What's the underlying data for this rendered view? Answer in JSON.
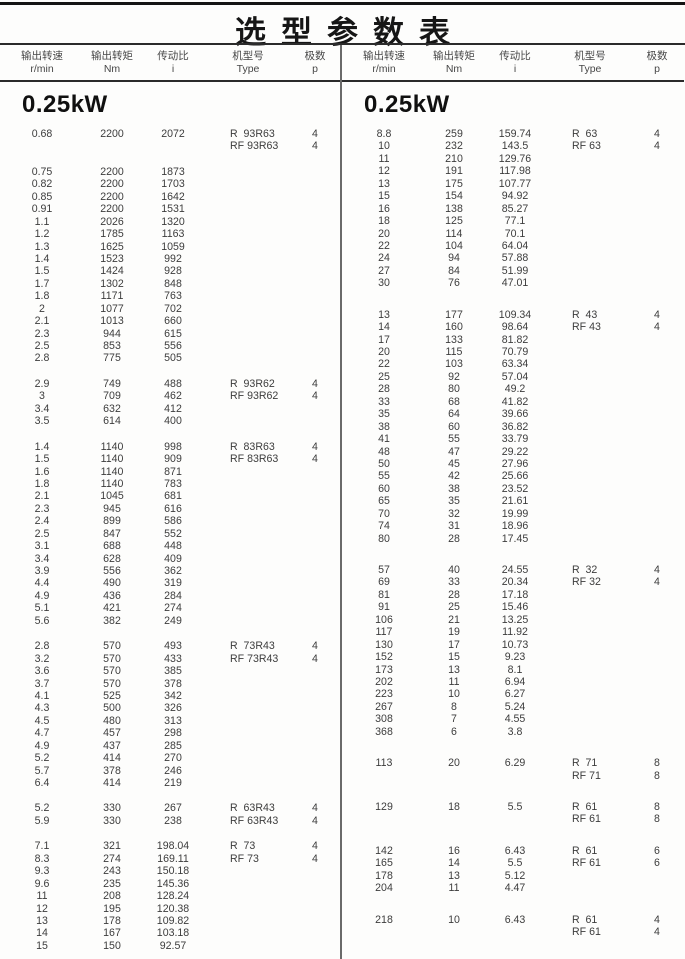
{
  "title": "选型参数表",
  "header": {
    "cols": [
      {
        "label": "输出转速",
        "unit": "r/min"
      },
      {
        "label": "输出转矩",
        "unit": "Nm"
      },
      {
        "label": "传动比",
        "unit": "i"
      },
      {
        "label": "机型号",
        "unit": "Type"
      },
      {
        "label": "极数",
        "unit": "p"
      }
    ]
  },
  "left": {
    "power": "0.25kW",
    "blocks": [
      {
        "rows": [
          [
            "0.68",
            "2200",
            "2072",
            "R  93R63",
            "4"
          ],
          [
            "",
            "",
            "",
            "RF 93R63",
            "4"
          ]
        ]
      },
      {
        "rows": [
          [
            "0.75",
            "2200",
            "1873",
            "",
            ""
          ],
          [
            "0.82",
            "2200",
            "1703",
            "",
            ""
          ],
          [
            "0.85",
            "2200",
            "1642",
            "",
            ""
          ],
          [
            "0.91",
            "2200",
            "1531",
            "",
            ""
          ],
          [
            "1.1",
            "2026",
            "1320",
            "",
            ""
          ],
          [
            "1.2",
            "1785",
            "1163",
            "",
            ""
          ],
          [
            "1.3",
            "1625",
            "1059",
            "",
            ""
          ],
          [
            "1.4",
            "1523",
            "992",
            "",
            ""
          ],
          [
            "1.5",
            "1424",
            "928",
            "",
            ""
          ],
          [
            "1.7",
            "1302",
            "848",
            "",
            ""
          ],
          [
            "1.8",
            "1171",
            "763",
            "",
            ""
          ],
          [
            "2",
            "1077",
            "702",
            "",
            ""
          ],
          [
            "2.1",
            "1013",
            "660",
            "",
            ""
          ],
          [
            "2.3",
            "944",
            "615",
            "",
            ""
          ],
          [
            "2.5",
            "853",
            "556",
            "",
            ""
          ],
          [
            "2.8",
            "775",
            "505",
            "",
            ""
          ]
        ]
      },
      {
        "rows": [
          [
            "2.9",
            "749",
            "488",
            "R  93R62",
            "4"
          ],
          [
            "3",
            "709",
            "462",
            "RF 93R62",
            "4"
          ],
          [
            "3.4",
            "632",
            "412",
            "",
            ""
          ],
          [
            "3.5",
            "614",
            "400",
            "",
            ""
          ]
        ]
      },
      {
        "rows": [
          [
            "1.4",
            "1140",
            "998",
            "R  83R63",
            "4"
          ],
          [
            "1.5",
            "1140",
            "909",
            "RF 83R63",
            "4"
          ],
          [
            "1.6",
            "1140",
            "871",
            "",
            ""
          ],
          [
            "1.8",
            "1140",
            "783",
            "",
            ""
          ],
          [
            "2.1",
            "1045",
            "681",
            "",
            ""
          ],
          [
            "2.3",
            "945",
            "616",
            "",
            ""
          ],
          [
            "2.4",
            "899",
            "586",
            "",
            ""
          ],
          [
            "2.5",
            "847",
            "552",
            "",
            ""
          ],
          [
            "3.1",
            "688",
            "448",
            "",
            ""
          ],
          [
            "3.4",
            "628",
            "409",
            "",
            ""
          ],
          [
            "3.9",
            "556",
            "362",
            "",
            ""
          ],
          [
            "4.4",
            "490",
            "319",
            "",
            ""
          ],
          [
            "4.9",
            "436",
            "284",
            "",
            ""
          ],
          [
            "5.1",
            "421",
            "274",
            "",
            ""
          ],
          [
            "5.6",
            "382",
            "249",
            "",
            ""
          ]
        ]
      },
      {
        "rows": [
          [
            "2.8",
            "570",
            "493",
            "R  73R43",
            "4"
          ],
          [
            "3.2",
            "570",
            "433",
            "RF 73R43",
            "4"
          ],
          [
            "3.6",
            "570",
            "385",
            "",
            ""
          ],
          [
            "3.7",
            "570",
            "378",
            "",
            ""
          ],
          [
            "4.1",
            "525",
            "342",
            "",
            ""
          ],
          [
            "4.3",
            "500",
            "326",
            "",
            ""
          ],
          [
            "4.5",
            "480",
            "313",
            "",
            ""
          ],
          [
            "4.7",
            "457",
            "298",
            "",
            ""
          ],
          [
            "4.9",
            "437",
            "285",
            "",
            ""
          ],
          [
            "5.2",
            "414",
            "270",
            "",
            ""
          ],
          [
            "5.7",
            "378",
            "246",
            "",
            ""
          ],
          [
            "6.4",
            "414",
            "219",
            "",
            ""
          ]
        ]
      },
      {
        "rows": [
          [
            "5.2",
            "330",
            "267",
            "R  63R43",
            "4"
          ],
          [
            "5.9",
            "330",
            "238",
            "RF 63R43",
            "4"
          ]
        ]
      },
      {
        "rows": [
          [
            "7.1",
            "321",
            "198.04",
            "R  73",
            "4"
          ],
          [
            "8.3",
            "274",
            "169.11",
            "RF 73",
            "4"
          ],
          [
            "9.3",
            "243",
            "150.18",
            "",
            ""
          ],
          [
            "9.6",
            "235",
            "145.36",
            "",
            ""
          ],
          [
            "11",
            "208",
            "128.24",
            "",
            ""
          ],
          [
            "12",
            "195",
            "120.38",
            "",
            ""
          ],
          [
            "13",
            "178",
            "109.82",
            "",
            ""
          ],
          [
            "14",
            "167",
            "103.18",
            "",
            ""
          ],
          [
            "15",
            "150",
            "92.57",
            "",
            ""
          ]
        ]
      }
    ]
  },
  "right": {
    "power": "0.25kW",
    "blocks": [
      {
        "rows": [
          [
            "8.8",
            "259",
            "159.74",
            "R  63",
            "4"
          ],
          [
            "10",
            "232",
            "143.5",
            "RF 63",
            "4"
          ],
          [
            "11",
            "210",
            "129.76",
            "",
            ""
          ],
          [
            "12",
            "191",
            "117.98",
            "",
            ""
          ],
          [
            "13",
            "175",
            "107.77",
            "",
            ""
          ],
          [
            "15",
            "154",
            "94.92",
            "",
            ""
          ],
          [
            "16",
            "138",
            "85.27",
            "",
            ""
          ],
          [
            "18",
            "125",
            "77.1",
            "",
            ""
          ],
          [
            "20",
            "114",
            "70.1",
            "",
            ""
          ],
          [
            "22",
            "104",
            "64.04",
            "",
            ""
          ],
          [
            "24",
            "94",
            "57.88",
            "",
            ""
          ],
          [
            "27",
            "84",
            "51.99",
            "",
            ""
          ],
          [
            "30",
            "76",
            "47.01",
            "",
            ""
          ]
        ]
      },
      {
        "rows": [
          [
            "13",
            "177",
            "109.34",
            "R  43",
            "4"
          ],
          [
            "14",
            "160",
            "98.64",
            "RF 43",
            "4"
          ],
          [
            "17",
            "133",
            "81.82",
            "",
            ""
          ],
          [
            "20",
            "115",
            "70.79",
            "",
            ""
          ],
          [
            "22",
            "103",
            "63.34",
            "",
            ""
          ],
          [
            "25",
            "92",
            "57.04",
            "",
            ""
          ],
          [
            "28",
            "80",
            "49.2",
            "",
            ""
          ],
          [
            "33",
            "68",
            "41.82",
            "",
            ""
          ],
          [
            "35",
            "64",
            "39.66",
            "",
            ""
          ],
          [
            "38",
            "60",
            "36.82",
            "",
            ""
          ],
          [
            "41",
            "55",
            "33.79",
            "",
            ""
          ],
          [
            "48",
            "47",
            "29.22",
            "",
            ""
          ],
          [
            "50",
            "45",
            "27.96",
            "",
            ""
          ],
          [
            "55",
            "42",
            "25.66",
            "",
            ""
          ],
          [
            "60",
            "38",
            "23.52",
            "",
            ""
          ],
          [
            "65",
            "35",
            "21.61",
            "",
            ""
          ],
          [
            "70",
            "32",
            "19.99",
            "",
            ""
          ],
          [
            "74",
            "31",
            "18.96",
            "",
            ""
          ],
          [
            "80",
            "28",
            "17.45",
            "",
            ""
          ]
        ]
      },
      {
        "rows": [
          [
            "57",
            "40",
            "24.55",
            "R  32",
            "4"
          ],
          [
            "69",
            "33",
            "20.34",
            "RF 32",
            "4"
          ],
          [
            "81",
            "28",
            "17.18",
            "",
            ""
          ],
          [
            "91",
            "25",
            "15.46",
            "",
            ""
          ],
          [
            "106",
            "21",
            "13.25",
            "",
            ""
          ],
          [
            "117",
            "19",
            "11.92",
            "",
            ""
          ],
          [
            "130",
            "17",
            "10.73",
            "",
            ""
          ],
          [
            "152",
            "15",
            "9.23",
            "",
            ""
          ],
          [
            "173",
            "13",
            "8.1",
            "",
            ""
          ],
          [
            "202",
            "11",
            "6.94",
            "",
            ""
          ],
          [
            "223",
            "10",
            "6.27",
            "",
            ""
          ],
          [
            "267",
            "8",
            "5.24",
            "",
            ""
          ],
          [
            "308",
            "7",
            "4.55",
            "",
            ""
          ],
          [
            "368",
            "6",
            "3.8",
            "",
            ""
          ]
        ]
      },
      {
        "rows": [
          [
            "113",
            "20",
            "6.29",
            "R  71",
            "8"
          ],
          [
            "",
            "",
            "",
            "RF 71",
            "8"
          ]
        ]
      },
      {
        "rows": [
          [
            "129",
            "18",
            "5.5",
            "R  61",
            "8"
          ],
          [
            "",
            "",
            "",
            "RF 61",
            "8"
          ]
        ]
      },
      {
        "rows": [
          [
            "142",
            "16",
            "6.43",
            "R  61",
            "6"
          ],
          [
            "165",
            "14",
            "5.5",
            "RF 61",
            "6"
          ],
          [
            "178",
            "13",
            "5.12",
            "",
            ""
          ],
          [
            "204",
            "11",
            "4.47",
            "",
            ""
          ]
        ]
      },
      {
        "rows": [
          [
            "218",
            "10",
            "6.43",
            "R  61",
            "4"
          ],
          [
            "",
            "",
            "",
            "RF 61",
            "4"
          ]
        ]
      }
    ]
  }
}
